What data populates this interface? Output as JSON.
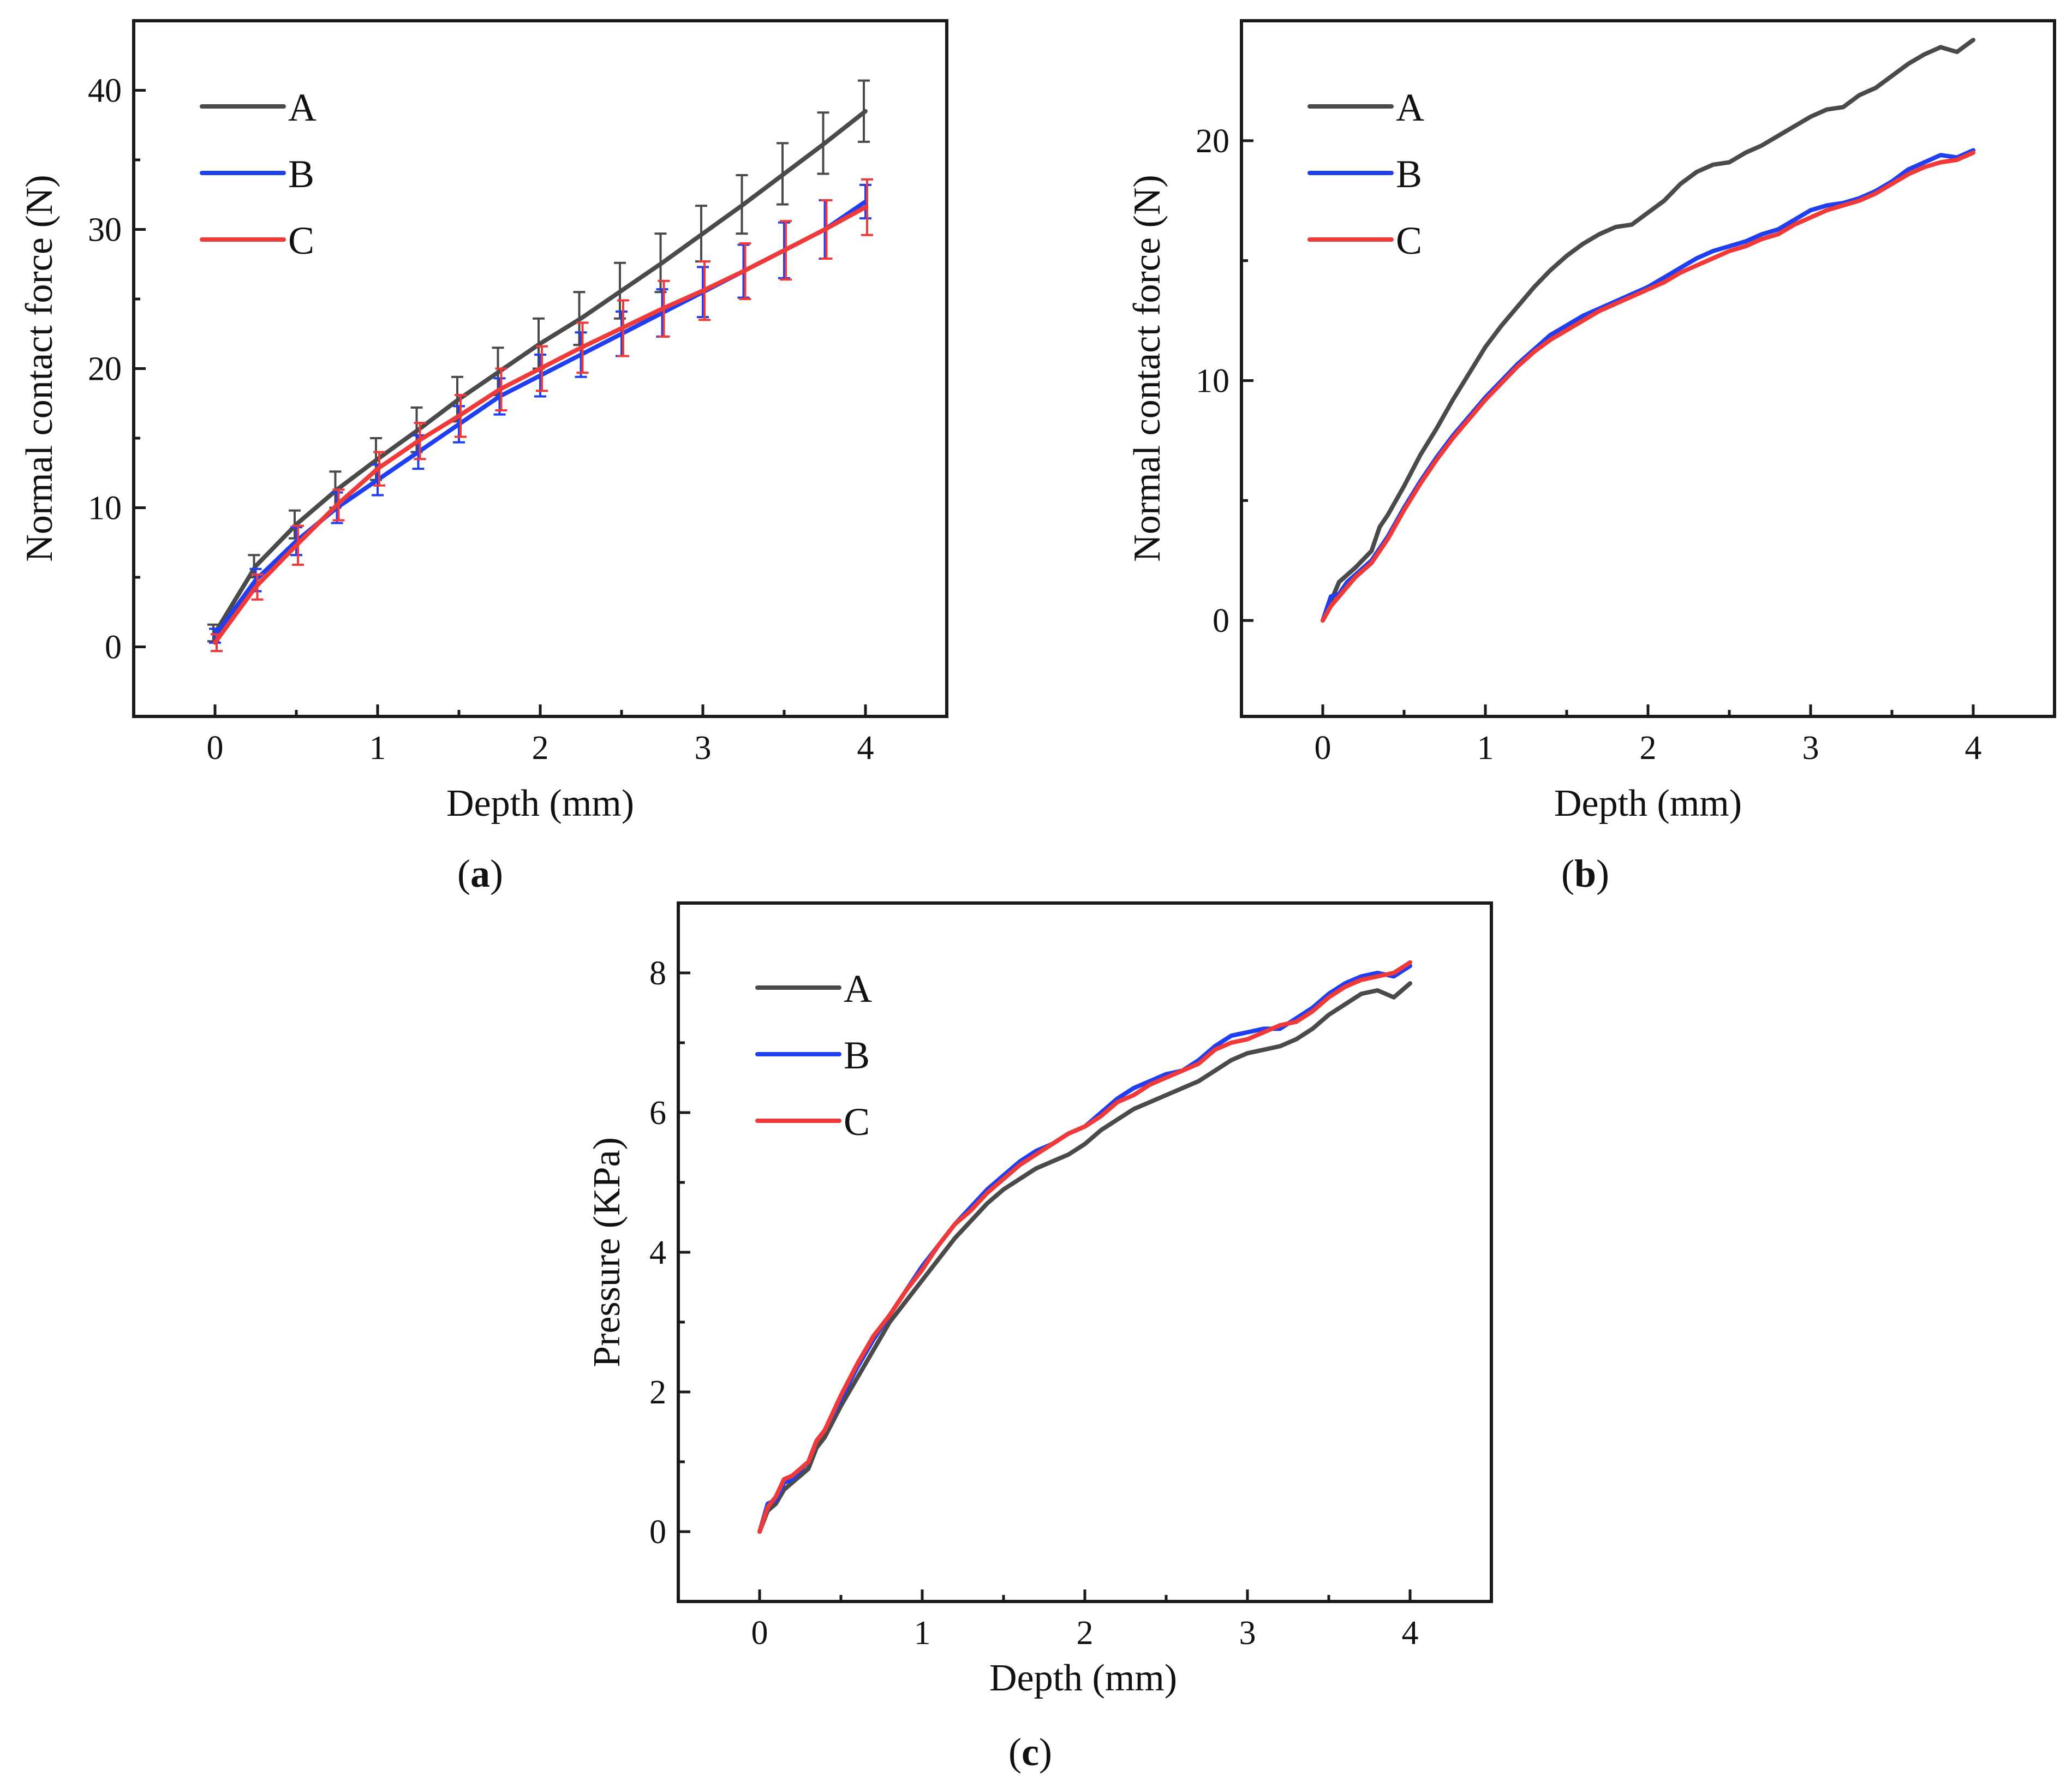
{
  "chart_data": [
    {
      "id": "a",
      "type": "line",
      "caption": {
        "open": "(",
        "letter": "a",
        "close": ")"
      },
      "xlabel": "Depth (mm)",
      "ylabel": "Normal contact force (N)",
      "xlim": [
        -0.5,
        4.5
      ],
      "ylim": [
        -5,
        45
      ],
      "xticks": [
        "0",
        "1",
        "2",
        "3",
        "4"
      ],
      "yticks": [
        "0",
        "10",
        "20",
        "30",
        "40"
      ],
      "error_bars": true,
      "series": [
        {
          "name": "A",
          "color": "#4a4a4a",
          "x": [
            0,
            0.25,
            0.5,
            0.75,
            1.0,
            1.25,
            1.5,
            1.75,
            2.0,
            2.25,
            2.5,
            2.75,
            3.0,
            3.25,
            3.5,
            3.75,
            4.0
          ],
          "y": [
            1.0,
            5.8,
            8.8,
            11.3,
            13.5,
            15.6,
            17.8,
            19.8,
            21.8,
            23.6,
            25.6,
            27.6,
            29.7,
            31.8,
            34.0,
            36.2,
            38.5
          ],
          "err": [
            0.6,
            0.8,
            1.0,
            1.3,
            1.5,
            1.6,
            1.6,
            1.7,
            1.8,
            1.9,
            2.0,
            2.1,
            2.0,
            2.1,
            2.2,
            2.2,
            2.2
          ]
        },
        {
          "name": "B",
          "color": "#1f3ff0",
          "x": [
            0,
            0.25,
            0.5,
            0.75,
            1.0,
            1.25,
            1.5,
            1.75,
            2.0,
            2.25,
            2.5,
            2.75,
            3.0,
            3.25,
            3.5,
            3.75,
            4.0
          ],
          "y": [
            0.8,
            4.8,
            7.6,
            10.0,
            12.0,
            14.0,
            16.0,
            18.0,
            19.5,
            21.0,
            22.5,
            24.0,
            25.5,
            27.0,
            28.5,
            30.0,
            32.0
          ],
          "err": [
            0.5,
            0.8,
            1.0,
            1.1,
            1.1,
            1.2,
            1.3,
            1.3,
            1.5,
            1.6,
            1.6,
            1.7,
            1.8,
            1.9,
            2.0,
            2.1,
            1.2
          ]
        },
        {
          "name": "C",
          "color": "#f03a3a",
          "x": [
            0,
            0.25,
            0.5,
            0.75,
            1.0,
            1.25,
            1.5,
            1.75,
            2.0,
            2.25,
            2.5,
            2.75,
            3.0,
            3.25,
            3.5,
            3.75,
            4.0
          ],
          "y": [
            0.3,
            4.3,
            7.3,
            10.2,
            12.8,
            14.8,
            16.6,
            18.5,
            20.0,
            21.5,
            22.9,
            24.3,
            25.6,
            27.0,
            28.5,
            30.0,
            31.6
          ],
          "err": [
            0.6,
            0.9,
            1.4,
            1.1,
            1.2,
            1.3,
            1.5,
            1.5,
            1.6,
            1.8,
            2.0,
            2.0,
            2.1,
            2.0,
            2.1,
            2.1,
            2.0
          ]
        }
      ]
    },
    {
      "id": "b",
      "type": "line",
      "caption": {
        "open": "(",
        "letter": "b",
        "close": ")"
      },
      "xlabel": "Depth (mm)",
      "ylabel": "Normal contact force (N)",
      "xlim": [
        -0.5,
        4.5
      ],
      "ylim": [
        -4,
        25
      ],
      "xticks": [
        "0",
        "1",
        "2",
        "3",
        "4"
      ],
      "yticks": [
        "0",
        "10",
        "20"
      ],
      "error_bars": false,
      "series": [
        {
          "name": "A",
          "color": "#4a4a4a",
          "x": [
            0,
            0.05,
            0.1,
            0.2,
            0.3,
            0.35,
            0.4,
            0.5,
            0.6,
            0.7,
            0.8,
            0.9,
            1.0,
            1.1,
            1.2,
            1.3,
            1.4,
            1.5,
            1.6,
            1.7,
            1.8,
            1.9,
            2.0,
            2.1,
            2.2,
            2.3,
            2.4,
            2.5,
            2.6,
            2.7,
            2.8,
            2.9,
            3.0,
            3.1,
            3.2,
            3.3,
            3.4,
            3.5,
            3.6,
            3.7,
            3.8,
            3.9,
            4.0
          ],
          "y": [
            0,
            0.8,
            1.6,
            2.2,
            2.9,
            3.9,
            4.4,
            5.6,
            6.9,
            8.0,
            9.2,
            10.3,
            11.4,
            12.3,
            13.1,
            13.9,
            14.6,
            15.2,
            15.7,
            16.1,
            16.4,
            16.5,
            17.0,
            17.5,
            18.2,
            18.7,
            19.0,
            19.1,
            19.5,
            19.8,
            20.2,
            20.6,
            21.0,
            21.3,
            21.4,
            21.9,
            22.2,
            22.7,
            23.2,
            23.6,
            23.9,
            23.7,
            24.2
          ]
        },
        {
          "name": "B",
          "color": "#1f3ff0",
          "x": [
            0,
            0.05,
            0.1,
            0.15,
            0.2,
            0.3,
            0.4,
            0.5,
            0.6,
            0.7,
            0.8,
            0.9,
            1.0,
            1.1,
            1.2,
            1.3,
            1.4,
            1.5,
            1.6,
            1.7,
            1.8,
            1.9,
            2.0,
            2.1,
            2.2,
            2.3,
            2.4,
            2.5,
            2.6,
            2.7,
            2.8,
            2.9,
            3.0,
            3.1,
            3.2,
            3.3,
            3.4,
            3.5,
            3.6,
            3.7,
            3.8,
            3.9,
            4.0
          ],
          "y": [
            0,
            1.0,
            1.1,
            1.6,
            1.9,
            2.5,
            3.5,
            4.7,
            5.8,
            6.8,
            7.7,
            8.5,
            9.3,
            10.0,
            10.7,
            11.3,
            11.9,
            12.3,
            12.7,
            13.0,
            13.3,
            13.6,
            13.9,
            14.3,
            14.7,
            15.1,
            15.4,
            15.6,
            15.8,
            16.1,
            16.3,
            16.7,
            17.1,
            17.3,
            17.4,
            17.6,
            17.9,
            18.3,
            18.8,
            19.1,
            19.4,
            19.3,
            19.6
          ]
        },
        {
          "name": "C",
          "color": "#f03a3a",
          "x": [
            0,
            0.05,
            0.1,
            0.15,
            0.2,
            0.3,
            0.4,
            0.5,
            0.6,
            0.7,
            0.8,
            0.9,
            1.0,
            1.1,
            1.2,
            1.3,
            1.4,
            1.5,
            1.6,
            1.7,
            1.8,
            1.9,
            2.0,
            2.1,
            2.2,
            2.3,
            2.4,
            2.5,
            2.6,
            2.7,
            2.8,
            2.9,
            3.0,
            3.1,
            3.2,
            3.3,
            3.4,
            3.5,
            3.6,
            3.7,
            3.8,
            3.9,
            4.0
          ],
          "y": [
            0,
            0.6,
            1.0,
            1.4,
            1.8,
            2.4,
            3.4,
            4.6,
            5.7,
            6.7,
            7.6,
            8.4,
            9.2,
            9.9,
            10.6,
            11.2,
            11.7,
            12.1,
            12.5,
            12.9,
            13.2,
            13.5,
            13.8,
            14.1,
            14.5,
            14.8,
            15.1,
            15.4,
            15.6,
            15.9,
            16.1,
            16.5,
            16.8,
            17.1,
            17.3,
            17.5,
            17.8,
            18.2,
            18.6,
            18.9,
            19.1,
            19.2,
            19.5
          ]
        }
      ]
    },
    {
      "id": "c",
      "type": "line",
      "caption": {
        "open": "(",
        "letter": "c",
        "close": ")"
      },
      "xlabel": "Depth (mm)",
      "ylabel": "Pressure (KPa)",
      "xlim": [
        -0.5,
        4.5
      ],
      "ylim": [
        -1,
        9
      ],
      "xticks": [
        "0",
        "1",
        "2",
        "3",
        "4"
      ],
      "yticks": [
        "0",
        "2",
        "4",
        "6",
        "8"
      ],
      "error_bars": false,
      "series": [
        {
          "name": "A",
          "color": "#4a4a4a",
          "x": [
            0,
            0.05,
            0.1,
            0.15,
            0.2,
            0.3,
            0.35,
            0.4,
            0.5,
            0.6,
            0.7,
            0.8,
            0.9,
            1.0,
            1.1,
            1.2,
            1.3,
            1.4,
            1.5,
            1.6,
            1.7,
            1.8,
            1.9,
            2.0,
            2.1,
            2.2,
            2.3,
            2.4,
            2.5,
            2.6,
            2.7,
            2.8,
            2.9,
            3.0,
            3.1,
            3.2,
            3.3,
            3.4,
            3.5,
            3.6,
            3.7,
            3.8,
            3.9,
            4.0
          ],
          "y": [
            0,
            0.3,
            0.4,
            0.6,
            0.7,
            0.9,
            1.2,
            1.35,
            1.8,
            2.2,
            2.6,
            3.0,
            3.3,
            3.6,
            3.9,
            4.2,
            4.45,
            4.7,
            4.9,
            5.05,
            5.2,
            5.3,
            5.4,
            5.55,
            5.75,
            5.9,
            6.05,
            6.15,
            6.25,
            6.35,
            6.45,
            6.6,
            6.75,
            6.85,
            6.9,
            6.95,
            7.05,
            7.2,
            7.4,
            7.55,
            7.7,
            7.75,
            7.65,
            7.85
          ]
        },
        {
          "name": "B",
          "color": "#1f3ff0",
          "x": [
            0,
            0.05,
            0.1,
            0.15,
            0.2,
            0.3,
            0.35,
            0.4,
            0.5,
            0.6,
            0.7,
            0.8,
            0.9,
            1.0,
            1.1,
            1.2,
            1.3,
            1.4,
            1.5,
            1.6,
            1.7,
            1.8,
            1.9,
            2.0,
            2.1,
            2.2,
            2.3,
            2.4,
            2.5,
            2.6,
            2.7,
            2.8,
            2.9,
            3.0,
            3.1,
            3.2,
            3.3,
            3.4,
            3.5,
            3.6,
            3.7,
            3.8,
            3.9,
            4.0
          ],
          "y": [
            0,
            0.4,
            0.45,
            0.7,
            0.75,
            1.0,
            1.3,
            1.45,
            1.9,
            2.35,
            2.75,
            3.1,
            3.45,
            3.8,
            4.1,
            4.4,
            4.65,
            4.9,
            5.1,
            5.3,
            5.45,
            5.55,
            5.7,
            5.8,
            6.0,
            6.2,
            6.35,
            6.45,
            6.55,
            6.6,
            6.75,
            6.95,
            7.1,
            7.15,
            7.2,
            7.2,
            7.35,
            7.5,
            7.7,
            7.85,
            7.95,
            8.0,
            7.95,
            8.1
          ]
        },
        {
          "name": "C",
          "color": "#f03a3a",
          "x": [
            0,
            0.05,
            0.1,
            0.15,
            0.2,
            0.3,
            0.35,
            0.4,
            0.5,
            0.6,
            0.7,
            0.8,
            0.9,
            1.0,
            1.1,
            1.2,
            1.3,
            1.4,
            1.5,
            1.6,
            1.7,
            1.8,
            1.9,
            2.0,
            2.1,
            2.2,
            2.3,
            2.4,
            2.5,
            2.6,
            2.7,
            2.8,
            2.9,
            3.0,
            3.1,
            3.2,
            3.3,
            3.4,
            3.5,
            3.6,
            3.7,
            3.8,
            3.9,
            4.0
          ],
          "y": [
            0,
            0.35,
            0.5,
            0.75,
            0.8,
            1.0,
            1.3,
            1.45,
            1.95,
            2.4,
            2.8,
            3.1,
            3.45,
            3.75,
            4.1,
            4.4,
            4.6,
            4.85,
            5.05,
            5.25,
            5.4,
            5.55,
            5.7,
            5.8,
            5.95,
            6.15,
            6.25,
            6.4,
            6.5,
            6.6,
            6.7,
            6.9,
            7.0,
            7.05,
            7.15,
            7.25,
            7.3,
            7.45,
            7.65,
            7.8,
            7.9,
            7.95,
            8.0,
            8.15
          ]
        }
      ]
    }
  ]
}
